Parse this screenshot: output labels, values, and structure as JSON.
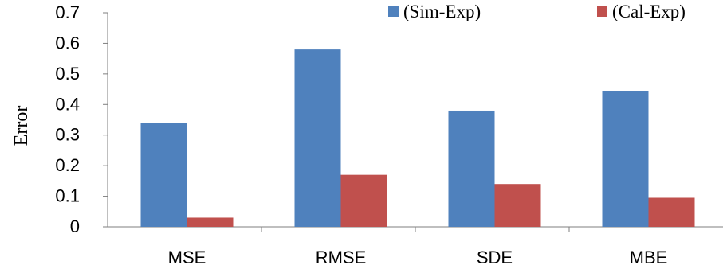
{
  "chart_data": {
    "type": "bar",
    "title": "",
    "xlabel": "",
    "ylabel": "Error",
    "ylim": [
      0,
      0.7
    ],
    "yticks": [
      0,
      0.1,
      0.2,
      0.3,
      0.4,
      0.5,
      0.6,
      0.7
    ],
    "ytick_labels": [
      "0",
      "0.1",
      "0.2",
      "0.3",
      "0.4",
      "0.5",
      "0.6",
      "0.7"
    ],
    "categories": [
      "MSE",
      "RMSE",
      "SDE",
      "MBE"
    ],
    "series": [
      {
        "name": "(Sim-Exp)",
        "color": "#4f81bd",
        "values": [
          0.34,
          0.58,
          0.38,
          0.445
        ]
      },
      {
        "name": "(Cal-Exp)",
        "color": "#c0504d",
        "values": [
          0.03,
          0.17,
          0.14,
          0.095
        ]
      }
    ],
    "grid": false,
    "legend_position": "top-right"
  }
}
